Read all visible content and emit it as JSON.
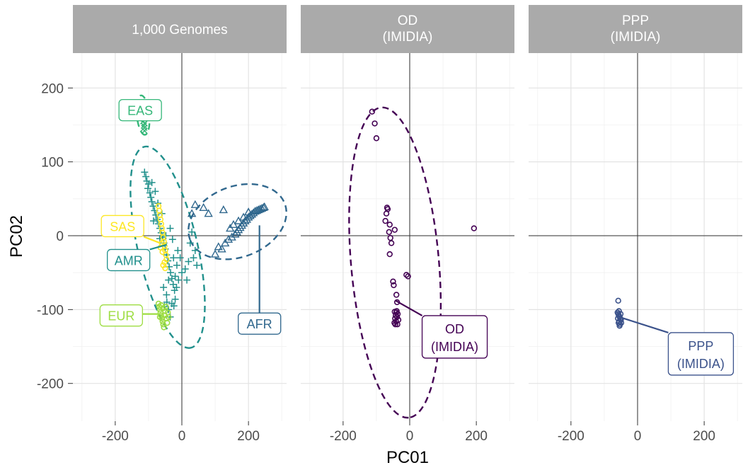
{
  "chart_data": {
    "type": "scatter",
    "xlabel": "PC01",
    "ylabel": "PC02",
    "xlim": [
      -330,
      310
    ],
    "ylim": [
      -250,
      240
    ],
    "x_ticks": [
      -200,
      0,
      200
    ],
    "y_ticks": [
      200,
      100,
      0,
      -100,
      -200
    ],
    "grid": true,
    "panels": [
      {
        "strip": [
          "1,000 Genomes"
        ],
        "series": [
          {
            "name": "EAS",
            "color": "#35b779",
            "marker": "x",
            "label_at": [
              -125,
              170
            ],
            "anchor": [
              -118,
              171
            ],
            "points": [
              [
                -122,
                178
              ],
              [
                -118,
                176
              ],
              [
                -120,
                173
              ],
              [
                -116,
                172
              ],
              [
                -123,
                170
              ],
              [
                -117,
                169
              ],
              [
                -121,
                167
              ],
              [
                -115,
                166
              ],
              [
                -119,
                164
              ],
              [
                -114,
                162
              ],
              [
                -118,
                160
              ],
              [
                -113,
                158
              ],
              [
                -116,
                155
              ],
              [
                -112,
                152
              ],
              [
                -114,
                149
              ],
              [
                -113,
                146
              ],
              [
                -112,
                142
              ],
              [
                -115,
                175
              ],
              [
                -117,
                168
              ]
            ]
          },
          {
            "name": "AMR",
            "color": "#21908c",
            "marker": "+",
            "label_at": [
              -160,
              -33
            ],
            "anchor": [
              -45,
              -12
            ],
            "points": [
              [
                -112,
                86
              ],
              [
                -108,
                80
              ],
              [
                -105,
                74
              ],
              [
                -100,
                70
              ],
              [
                -102,
                64
              ],
              [
                -96,
                58
              ],
              [
                -93,
                52
              ],
              [
                -90,
                46
              ],
              [
                -86,
                40
              ],
              [
                -82,
                34
              ],
              [
                -78,
                28
              ],
              [
                -74,
                22
              ],
              [
                -70,
                16
              ],
              [
                -66,
                10
              ],
              [
                -62,
                4
              ],
              [
                -58,
                -2
              ],
              [
                -54,
                -10
              ],
              [
                -50,
                -18
              ],
              [
                -46,
                -26
              ],
              [
                -42,
                -34
              ],
              [
                -38,
                -42
              ],
              [
                -34,
                -50
              ],
              [
                -30,
                -58
              ],
              [
                -26,
                -66
              ],
              [
                -22,
                -74
              ],
              [
                -40,
                -60
              ],
              [
                -46,
                -80
              ],
              [
                -52,
                -96
              ],
              [
                -30,
                -92
              ],
              [
                -20,
                -86
              ],
              [
                -10,
                -60
              ],
              [
                -15,
                -40
              ],
              [
                -25,
                -30
              ],
              [
                -12,
                -20
              ],
              [
                0,
                -50
              ],
              [
                10,
                -45
              ],
              [
                20,
                -35
              ],
              [
                25,
                -10
              ],
              [
                30,
                5
              ],
              [
                40,
                -20
              ],
              [
                45,
                -40
              ],
              [
                -40,
                -100
              ],
              [
                -35,
                -110
              ],
              [
                -45,
                -90
              ],
              [
                -55,
                -70
              ],
              [
                -80,
                60
              ],
              [
                -72,
                44
              ],
              [
                -66,
                -4
              ],
              [
                -90,
                72
              ],
              [
                -85,
                20
              ],
              [
                -60,
                30
              ],
              [
                -48,
                0
              ],
              [
                -35,
                10
              ],
              [
                -28,
                -5
              ],
              [
                -20,
                -55
              ],
              [
                -16,
                -70
              ],
              [
                -24,
                -95
              ],
              [
                -5,
                -30
              ],
              [
                15,
                -60
              ],
              [
                35,
                -30
              ]
            ]
          },
          {
            "name": "SAS",
            "color": "#fde725",
            "marker": "o",
            "label_at": [
              -178,
              13
            ],
            "anchor": [
              -65,
              -10
            ],
            "points": [
              [
                -70,
                40
              ],
              [
                -68,
                34
              ],
              [
                -66,
                28
              ],
              [
                -64,
                22
              ],
              [
                -62,
                16
              ],
              [
                -60,
                10
              ],
              [
                -58,
                4
              ],
              [
                -56,
                -2
              ],
              [
                -54,
                -8
              ],
              [
                -52,
                -14
              ],
              [
                -50,
                -20
              ],
              [
                -48,
                -26
              ],
              [
                -46,
                -32
              ],
              [
                -60,
                -10
              ],
              [
                -64,
                -16
              ],
              [
                -58,
                -22
              ],
              [
                -52,
                -36
              ],
              [
                -56,
                -40
              ],
              [
                -50,
                -44
              ]
            ]
          },
          {
            "name": "EUR",
            "color": "#9ddd42",
            "marker": "o",
            "label_at": [
              -182,
              -108
            ],
            "anchor": [
              -70,
              -106
            ],
            "points": [
              [
                -70,
                -92
              ],
              [
                -68,
                -96
              ],
              [
                -66,
                -100
              ],
              [
                -64,
                -104
              ],
              [
                -62,
                -108
              ],
              [
                -60,
                -112
              ],
              [
                -58,
                -116
              ],
              [
                -56,
                -120
              ],
              [
                -54,
                -124
              ],
              [
                -52,
                -108
              ],
              [
                -50,
                -102
              ],
              [
                -48,
                -96
              ],
              [
                -46,
                -112
              ],
              [
                -44,
                -118
              ],
              [
                -42,
                -104
              ],
              [
                -40,
                -110
              ],
              [
                -56,
                -98
              ],
              [
                -62,
                -94
              ],
              [
                -66,
                -110
              ]
            ]
          },
          {
            "name": "AFR",
            "color": "#31688e",
            "marker": "^",
            "label_at": [
              233,
              -119
            ],
            "anchor": [
              233,
              14
            ],
            "points": [
              [
                160,
                2
              ],
              [
                165,
                5
              ],
              [
                170,
                8
              ],
              [
                175,
                11
              ],
              [
                180,
                14
              ],
              [
                185,
                17
              ],
              [
                190,
                20
              ],
              [
                195,
                22
              ],
              [
                200,
                25
              ],
              [
                205,
                27
              ],
              [
                210,
                29
              ],
              [
                215,
                31
              ],
              [
                220,
                33
              ],
              [
                225,
                34
              ],
              [
                230,
                35
              ],
              [
                235,
                36
              ],
              [
                240,
                37
              ],
              [
                245,
                38
              ],
              [
                248,
                39
              ],
              [
                150,
                -2
              ],
              [
                140,
                -5
              ],
              [
                120,
                -18
              ],
              [
                100,
                -25
              ],
              [
                110,
                -15
              ],
              [
                130,
                -10
              ],
              [
                65,
                38
              ],
              [
                40,
                42
              ],
              [
                30,
                30
              ],
              [
                80,
                30
              ],
              [
                125,
                35
              ],
              [
                145,
                10
              ],
              [
                155,
                15
              ],
              [
                170,
                20
              ],
              [
                185,
                25
              ],
              [
                200,
                32
              ]
            ]
          }
        ],
        "ellipses": [
          {
            "group": "EAS",
            "color": "#35b779"
          },
          {
            "group": "AMR",
            "color": "#21908c"
          },
          {
            "group": "AFR",
            "color": "#31688e"
          }
        ]
      },
      {
        "strip": [
          "OD",
          "(IMIDIA)"
        ],
        "series": [
          {
            "name": "OD (IMIDIA)",
            "color": "#440154",
            "marker": "o",
            "label_at": [
              135,
              -137
            ],
            "anchor": [
              -42,
              -88
            ],
            "points": [
              [
                -113,
                168
              ],
              [
                -105,
                152
              ],
              [
                -100,
                132
              ],
              [
                -68,
                38
              ],
              [
                -66,
                36
              ],
              [
                -70,
                30
              ],
              [
                -73,
                20
              ],
              [
                -60,
                15
              ],
              [
                -45,
                8
              ],
              [
                -62,
                5
              ],
              [
                -58,
                -3
              ],
              [
                -55,
                -10
              ],
              [
                -60,
                -25
              ],
              [
                -50,
                -62
              ],
              [
                -48,
                -67
              ],
              [
                -40,
                -80
              ],
              [
                -38,
                -90
              ],
              [
                -10,
                -53
              ],
              [
                -5,
                -55
              ],
              [
                193,
                10
              ],
              [
                -45,
                -103
              ],
              [
                -42,
                -108
              ],
              [
                -40,
                -104
              ],
              [
                -38,
                -110
              ],
              [
                -44,
                -112
              ],
              [
                -36,
                -106
              ],
              [
                -41,
                -116
              ],
              [
                -46,
                -118
              ],
              [
                -34,
                -114
              ],
              [
                -39,
                -102
              ],
              [
                -43,
                -120
              ],
              [
                -37,
                -120
              ]
            ]
          }
        ],
        "ellipses": [
          {
            "group": "OD",
            "color": "#440154"
          }
        ]
      },
      {
        "strip": [
          "PPP",
          "(IMIDIA)"
        ],
        "series": [
          {
            "name": "PPP (IMIDIA)",
            "color": "#3b528b",
            "marker": "o",
            "label_at": [
              190,
              -160
            ],
            "anchor": [
              -55,
              -110
            ],
            "points": [
              [
                -58,
                -88
              ],
              [
                -60,
                -104
              ],
              [
                -58,
                -106
              ],
              [
                -56,
                -108
              ],
              [
                -54,
                -110
              ],
              [
                -52,
                -112
              ],
              [
                -50,
                -114
              ],
              [
                -55,
                -116
              ],
              [
                -57,
                -118
              ],
              [
                -53,
                -120
              ],
              [
                -51,
                -106
              ],
              [
                -59,
                -112
              ],
              [
                -49,
                -118
              ],
              [
                -56,
                -102
              ],
              [
                -54,
                -122
              ]
            ]
          }
        ],
        "ellipses": []
      }
    ]
  }
}
